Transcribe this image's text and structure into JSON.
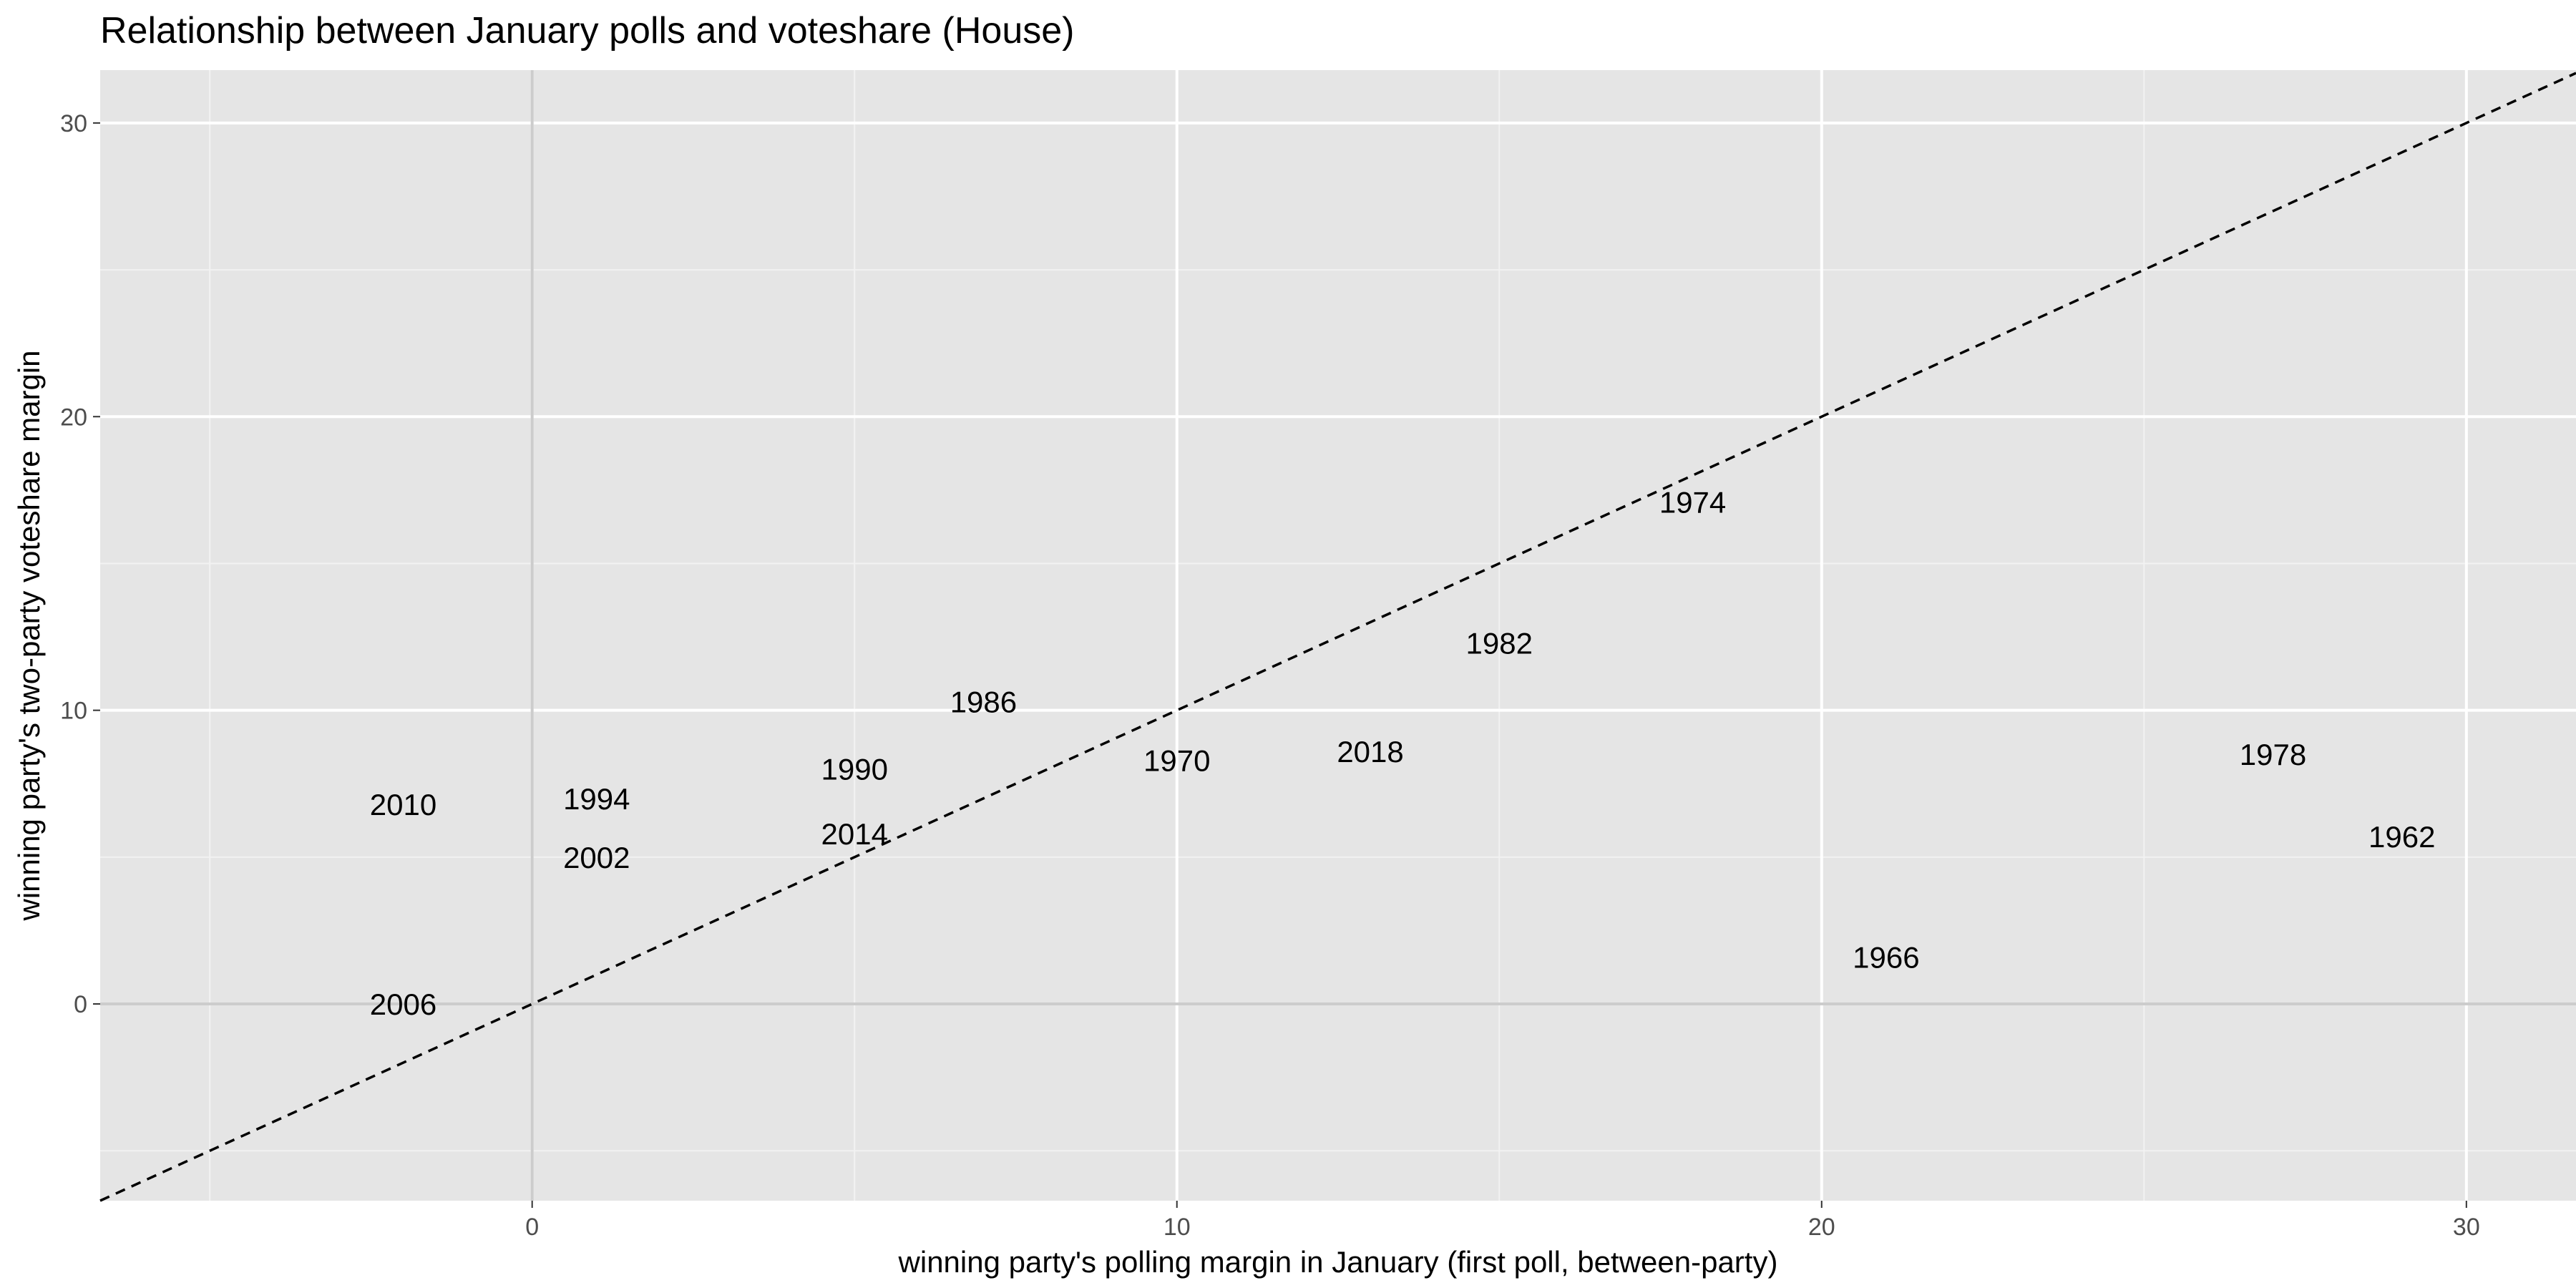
{
  "chart_data": {
    "type": "scatter",
    "title": "Relationship between January polls and voteshare (House)",
    "xlabel": "winning party's polling margin in January (first poll, between-party)",
    "ylabel": "winning party's two-party voteshare margin",
    "xlim": [
      -6.7,
      31.7
    ],
    "ylim": [
      -6.7,
      31.8
    ],
    "x_ticks": [
      0,
      10,
      20,
      30
    ],
    "y_ticks": [
      0,
      10,
      20,
      30
    ],
    "grid": true,
    "panel_background": "#e5e5e5",
    "reference_line": {
      "slope": 1,
      "intercept": 0,
      "style": "dashed"
    },
    "points": [
      {
        "label": "2010",
        "x": -2.0,
        "y": 6.8
      },
      {
        "label": "2006",
        "x": -2.0,
        "y": 0.0
      },
      {
        "label": "1994",
        "x": 1.0,
        "y": 7.0
      },
      {
        "label": "2002",
        "x": 1.0,
        "y": 5.0
      },
      {
        "label": "1990",
        "x": 5.0,
        "y": 8.0
      },
      {
        "label": "2014",
        "x": 5.0,
        "y": 5.8
      },
      {
        "label": "1986",
        "x": 7.0,
        "y": 10.3
      },
      {
        "label": "1970",
        "x": 10.0,
        "y": 8.3
      },
      {
        "label": "2018",
        "x": 13.0,
        "y": 8.6
      },
      {
        "label": "1982",
        "x": 15.0,
        "y": 12.3
      },
      {
        "label": "1974",
        "x": 18.0,
        "y": 17.1
      },
      {
        "label": "1966",
        "x": 21.0,
        "y": 1.6
      },
      {
        "label": "1978",
        "x": 27.0,
        "y": 8.5
      },
      {
        "label": "1962",
        "x": 29.0,
        "y": 5.7
      }
    ]
  }
}
